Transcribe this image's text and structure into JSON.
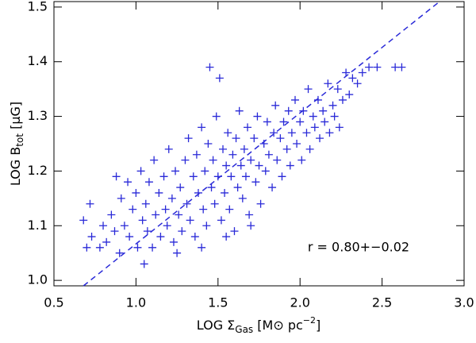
{
  "chart_data": {
    "type": "scatter",
    "xlabel": {
      "main": "LOG Σ",
      "sub": "Gas",
      "rest": " [M⊙ pc",
      "sup": "−2",
      "end": "]"
    },
    "ylabel": {
      "main": "LOG B",
      "sub": "tot",
      "rest": " [μG]"
    },
    "annotation": "r = 0.80+−0.02",
    "color": "#2a2ad8",
    "xlim": [
      0.5,
      3.0
    ],
    "ylim": [
      0.99,
      1.51
    ],
    "xticks": [
      {
        "value": 0.5,
        "label": "0.5"
      },
      {
        "value": 1,
        "label": "1.0"
      },
      {
        "value": 1.5,
        "label": "1.5"
      },
      {
        "value": 2,
        "label": "2.0"
      },
      {
        "value": 2.5,
        "label": "2.5"
      },
      {
        "value": 3,
        "label": "3.0"
      }
    ],
    "yticks": [
      {
        "value": 1,
        "label": "1.0"
      },
      1.1,
      1.2,
      1.3,
      1.4,
      1.5
    ],
    "x": [
      0.68,
      0.72,
      0.73,
      0.78,
      0.8,
      0.82,
      0.85,
      0.87,
      0.88,
      0.9,
      0.91,
      0.93,
      0.95,
      0.96,
      0.98,
      1.0,
      1.01,
      1.03,
      1.04,
      1.06,
      1.07,
      1.08,
      1.1,
      1.11,
      1.12,
      1.14,
      1.15,
      1.17,
      1.18,
      1.19,
      1.2,
      1.22,
      1.23,
      1.24,
      1.26,
      1.27,
      1.28,
      1.3,
      1.31,
      1.32,
      1.33,
      1.35,
      1.36,
      1.37,
      1.38,
      1.4,
      1.41,
      1.42,
      1.43,
      1.44,
      1.45,
      1.46,
      1.47,
      1.48,
      1.49,
      1.5,
      1.51,
      1.52,
      1.53,
      1.54,
      1.55,
      1.56,
      1.57,
      1.58,
      1.59,
      1.6,
      1.61,
      1.62,
      1.63,
      1.64,
      1.65,
      1.66,
      1.67,
      1.68,
      1.69,
      1.7,
      1.72,
      1.73,
      1.74,
      1.75,
      1.76,
      1.78,
      1.79,
      1.8,
      1.81,
      1.83,
      1.84,
      1.85,
      1.86,
      1.88,
      1.89,
      1.9,
      1.92,
      1.93,
      1.94,
      1.95,
      1.97,
      1.98,
      2.0,
      2.01,
      2.02,
      2.04,
      2.05,
      2.06,
      2.08,
      2.09,
      2.11,
      2.12,
      2.14,
      2.15,
      2.17,
      2.18,
      2.2,
      2.21,
      2.23,
      2.24,
      2.26,
      2.28,
      2.3,
      2.32,
      2.35,
      2.38,
      2.42,
      2.47,
      2.58,
      2.62,
      1.25,
      1.4,
      1.55,
      1.7,
      1.05,
      0.7
    ],
    "y": [
      1.11,
      1.14,
      1.08,
      1.06,
      1.1,
      1.07,
      1.12,
      1.09,
      1.19,
      1.05,
      1.15,
      1.1,
      1.18,
      1.08,
      1.13,
      1.16,
      1.06,
      1.2,
      1.11,
      1.14,
      1.09,
      1.18,
      1.06,
      1.22,
      1.12,
      1.16,
      1.08,
      1.19,
      1.13,
      1.1,
      1.24,
      1.15,
      1.07,
      1.2,
      1.12,
      1.17,
      1.09,
      1.22,
      1.14,
      1.26,
      1.11,
      1.19,
      1.08,
      1.23,
      1.16,
      1.28,
      1.13,
      1.2,
      1.1,
      1.25,
      1.39,
      1.17,
      1.22,
      1.14,
      1.3,
      1.19,
      1.37,
      1.11,
      1.24,
      1.16,
      1.21,
      1.27,
      1.13,
      1.19,
      1.23,
      1.09,
      1.26,
      1.17,
      1.31,
      1.21,
      1.15,
      1.24,
      1.19,
      1.28,
      1.12,
      1.22,
      1.26,
      1.18,
      1.3,
      1.21,
      1.14,
      1.25,
      1.2,
      1.29,
      1.23,
      1.17,
      1.27,
      1.32,
      1.22,
      1.26,
      1.19,
      1.29,
      1.24,
      1.31,
      1.21,
      1.27,
      1.33,
      1.25,
      1.29,
      1.22,
      1.31,
      1.27,
      1.35,
      1.24,
      1.3,
      1.28,
      1.33,
      1.26,
      1.31,
      1.29,
      1.36,
      1.27,
      1.32,
      1.3,
      1.35,
      1.28,
      1.33,
      1.38,
      1.34,
      1.37,
      1.36,
      1.38,
      1.39,
      1.39,
      1.39,
      1.39,
      1.05,
      1.06,
      1.08,
      1.1,
      1.03,
      1.06
    ],
    "fit_line": {
      "x": [
        0.68,
        2.85
      ],
      "y": [
        0.99,
        1.51
      ]
    }
  }
}
